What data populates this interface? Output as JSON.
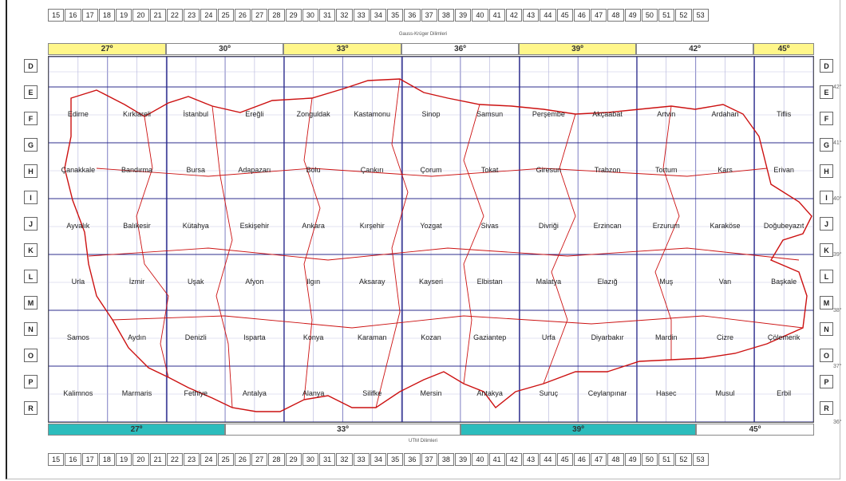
{
  "top_numbers": [
    "15",
    "16",
    "17",
    "18",
    "19",
    "20",
    "21",
    "22",
    "23",
    "24",
    "25",
    "26",
    "27",
    "28",
    "29",
    "30",
    "31",
    "32",
    "33",
    "34",
    "35",
    "36",
    "37",
    "38",
    "39",
    "40",
    "41",
    "42",
    "43",
    "44",
    "45",
    "46",
    "47",
    "48",
    "49",
    "50",
    "51",
    "52",
    "53"
  ],
  "bottom_numbers": [
    "15",
    "16",
    "17",
    "18",
    "19",
    "20",
    "21",
    "22",
    "23",
    "24",
    "25",
    "26",
    "27",
    "28",
    "29",
    "30",
    "31",
    "32",
    "33",
    "34",
    "35",
    "36",
    "37",
    "38",
    "39",
    "40",
    "41",
    "42",
    "43",
    "44",
    "45",
    "46",
    "47",
    "48",
    "49",
    "50",
    "51",
    "52",
    "53"
  ],
  "gauss_caption": "Gauss-Krüger Dilimleri",
  "utm_caption": "UTM Dilimleri",
  "gk_zones": [
    {
      "label": "27º",
      "color": "#fff68a"
    },
    {
      "label": "30º",
      "color": "#ffffff"
    },
    {
      "label": "33º",
      "color": "#fff68a"
    },
    {
      "label": "36º",
      "color": "#ffffff"
    },
    {
      "label": "39º",
      "color": "#fff68a"
    },
    {
      "label": "42º",
      "color": "#ffffff"
    },
    {
      "label": "45º",
      "color": "#fff68a"
    }
  ],
  "utm_zones": [
    {
      "label": "27º",
      "color": "#2cbcbc"
    },
    {
      "label": "33º",
      "color": "#ffffff"
    },
    {
      "label": "39º",
      "color": "#2cbcbc"
    },
    {
      "label": "45º",
      "color": "#ffffff"
    }
  ],
  "row_letters": [
    "D",
    "E",
    "F",
    "G",
    "H",
    "I",
    "J",
    "K",
    "L",
    "M",
    "N",
    "O",
    "P",
    "R"
  ],
  "lat_labels": [
    "42°",
    "41°",
    "40°",
    "39°",
    "38°",
    "37°",
    "36°"
  ],
  "city_rows": [
    [
      "Edirne",
      "Kırklareli",
      "İstanbul",
      "Ereğli",
      "Zonguldak",
      "Kastamonu",
      "Sinop",
      "Samsun",
      "Perşembe",
      "Akçaabat",
      "Artvin",
      "Ardahan",
      "Tiflis"
    ],
    [
      "Çanakkale",
      "Bandırma",
      "Bursa",
      "Adapazarı",
      "Bolu",
      "Çankırı",
      "Çorum",
      "Tokat",
      "Giresun",
      "Trabzon",
      "Tortum",
      "Kars",
      "Erivan"
    ],
    [
      "Ayvalık",
      "Balıkesir",
      "Kütahya",
      "Eskişehir",
      "Ankara",
      "Kırşehir",
      "Yozgat",
      "Sivas",
      "Divriği",
      "Erzincan",
      "Erzurum",
      "Karaköse",
      "Doğubeyazıt"
    ],
    [
      "Urla",
      "İzmir",
      "Uşak",
      "Afyon",
      "Ilgın",
      "Aksaray",
      "Kayseri",
      "Elbistan",
      "Malatya",
      "Elazığ",
      "Muş",
      "Van",
      "Başkale"
    ],
    [
      "Samos",
      "Aydın",
      "Denizli",
      "Isparta",
      "Konya",
      "Karaman",
      "Kozan",
      "Gaziantep",
      "Urfa",
      "Diyarbakır",
      "Mardin",
      "Cizre",
      "Çölemerik"
    ],
    [
      "Kalimnos",
      "Marmaris",
      "Fethiye",
      "Antalya",
      "Alanya",
      "Silifke",
      "Mersin",
      "Antakya",
      "Suruç",
      "Ceylanpınar",
      "Hasec",
      "Musul",
      "Erbil"
    ]
  ],
  "colors": {
    "grid": "#2d2d8c",
    "border": "#cc1111",
    "gk_yellow": "#fff68a",
    "utm_teal": "#2cbcbc"
  }
}
